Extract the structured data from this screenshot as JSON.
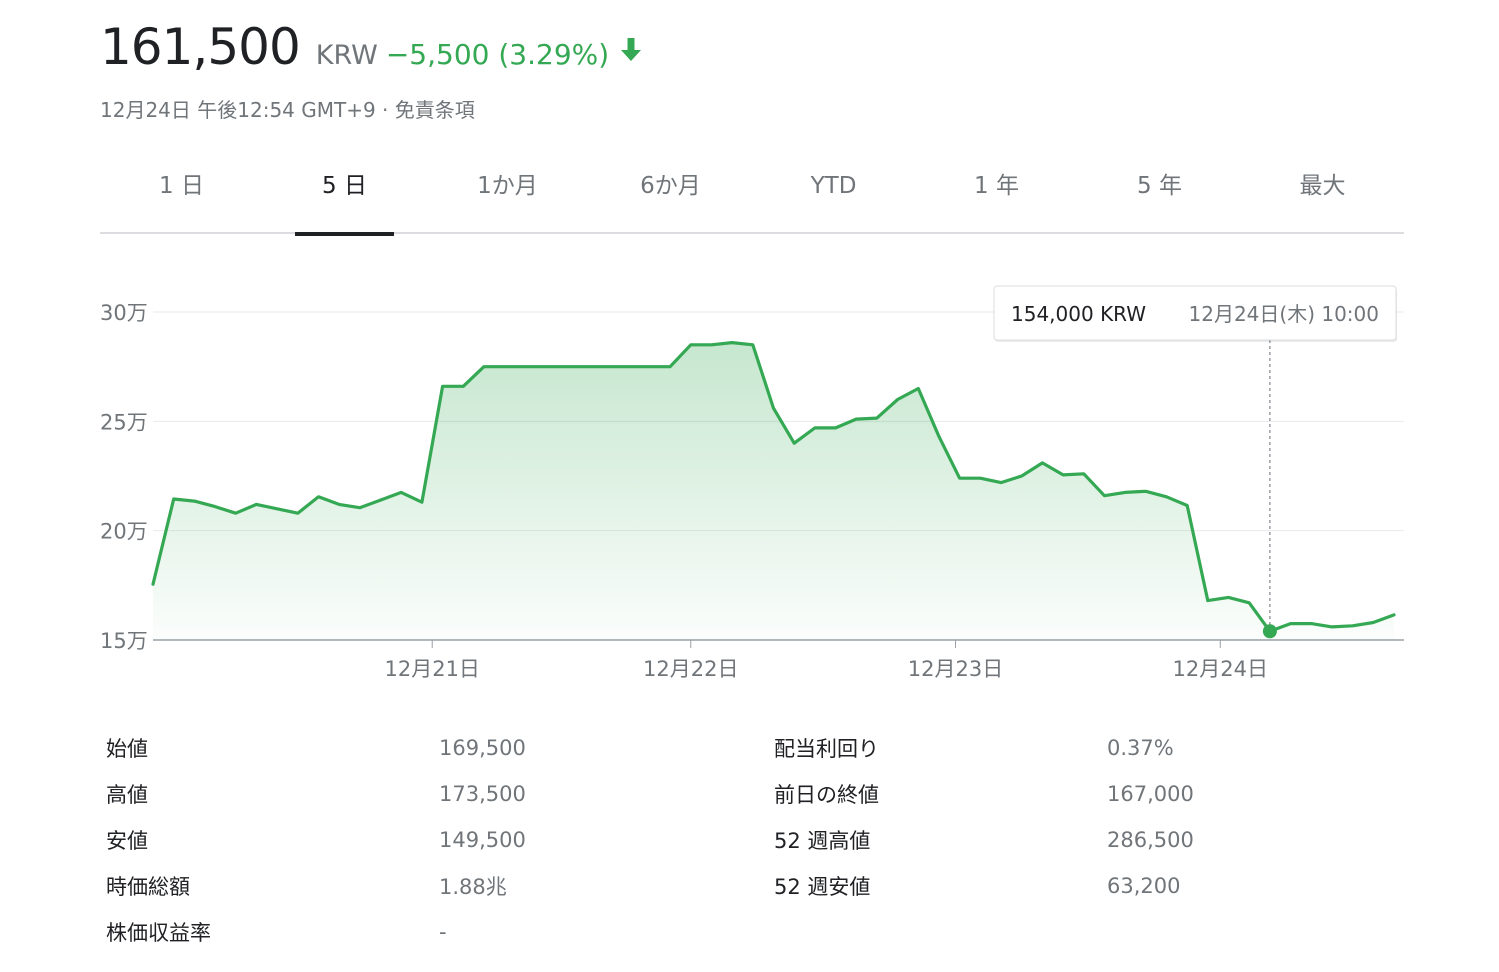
{
  "quote": {
    "price": "161,500",
    "currency": "KRW",
    "change": "−5,500 (3.29%)",
    "direction": "down",
    "timestamp": "12月24日 午後12:54 GMT+9",
    "separator": " · ",
    "disclaimer": "免責条項"
  },
  "tabs": [
    {
      "label": "1 日",
      "active": false
    },
    {
      "label": "5 日",
      "active": true
    },
    {
      "label": "1か月",
      "active": false
    },
    {
      "label": "6か月",
      "active": false
    },
    {
      "label": "YTD",
      "active": false
    },
    {
      "label": "1 年",
      "active": false
    },
    {
      "label": "5 年",
      "active": false
    },
    {
      "label": "最大",
      "active": false
    }
  ],
  "colors": {
    "line": "#34a853",
    "negative": "#34a853",
    "grid": "#e8eaed",
    "axis": "#70757a"
  },
  "chart_data": {
    "type": "area",
    "title": "",
    "xlabel": "",
    "ylabel": "",
    "ylim": [
      150000,
      300000
    ],
    "xlim": [
      0,
      60
    ],
    "grid": true,
    "y_ticks": [
      {
        "value": 300000,
        "label": "30万"
      },
      {
        "value": 250000,
        "label": "25万"
      },
      {
        "value": 200000,
        "label": "20万"
      },
      {
        "value": 150000,
        "label": "15万"
      }
    ],
    "x_ticks": [
      {
        "value": 13.5,
        "label": "12月21日"
      },
      {
        "value": 26,
        "label": "12月22日"
      },
      {
        "value": 38.8,
        "label": "12月23日"
      },
      {
        "value": 51.6,
        "label": "12月24日"
      }
    ],
    "series": [
      {
        "x": [
          0,
          1,
          2,
          3,
          4,
          5,
          6,
          7,
          8,
          9,
          10,
          11,
          12,
          13,
          14,
          15,
          16,
          17,
          18,
          19,
          20,
          21,
          22,
          23,
          24,
          25,
          26,
          27,
          28,
          29,
          30,
          31,
          32,
          33,
          34,
          35,
          36,
          37,
          38,
          39,
          40,
          41,
          42,
          43,
          44,
          45,
          46,
          47,
          48,
          49,
          50,
          51,
          52,
          53,
          54,
          55,
          56,
          57,
          58,
          59,
          60
        ],
        "values": [
          175500,
          214500,
          213500,
          211000,
          208000,
          212000,
          210000,
          208000,
          215500,
          212000,
          210500,
          214000,
          217500,
          213000,
          266000,
          266000,
          275000,
          275000,
          275000,
          275000,
          275000,
          275000,
          275000,
          275000,
          275000,
          275000,
          285000,
          285000,
          286000,
          285000,
          256000,
          240000,
          247000,
          247000,
          251000,
          251500,
          260000,
          265000,
          243000,
          224000,
          224000,
          222000,
          225000,
          231000,
          225500,
          226000,
          216000,
          217500,
          218000,
          215500,
          211500,
          168000,
          169500,
          167000,
          154000,
          157500,
          157500,
          156000,
          156500,
          158000,
          161500
        ]
      }
    ],
    "highlight": {
      "index": 54,
      "value_label": "154,000 KRW",
      "time_label": "12月24日(木) 10:00"
    }
  },
  "stats": {
    "left": [
      {
        "label": "始値",
        "value": "169,500"
      },
      {
        "label": "高値",
        "value": "173,500"
      },
      {
        "label": "安値",
        "value": "149,500"
      },
      {
        "label": "時価総額",
        "value": "1.88兆"
      },
      {
        "label": "株価収益率",
        "value": "-"
      }
    ],
    "right": [
      {
        "label": "配当利回り",
        "value": "0.37%"
      },
      {
        "label": "前日の終値",
        "value": "167,000"
      },
      {
        "label": "52 週高値",
        "value": "286,500"
      },
      {
        "label": "52 週安値",
        "value": "63,200"
      }
    ]
  }
}
